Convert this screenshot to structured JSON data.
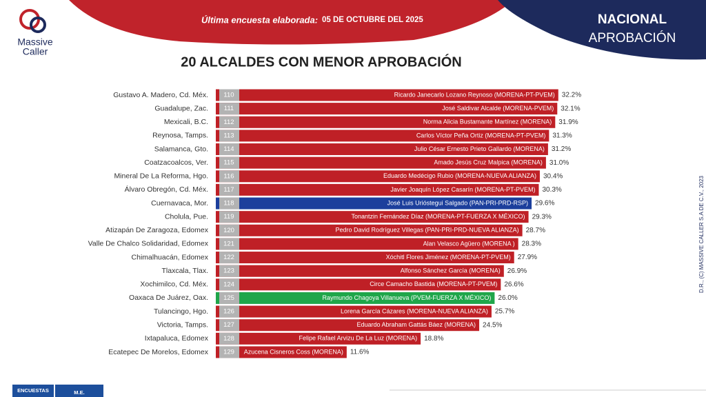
{
  "header": {
    "survey_label": "Última encuesta elaborada:",
    "survey_date": "05 DE OCTUBRE DEL  2025",
    "scope": "NACIONAL",
    "metric": "APROBACIÓN",
    "brand_line1": "Massive",
    "brand_line2": "Caller",
    "side_note": "D.R., (C) MASSIVE CALLER S.A DE C.V., 2023"
  },
  "footer": {
    "tab1": "ENCUESTAS",
    "tab2": "M.E."
  },
  "chart_data": {
    "type": "bar",
    "title": "20 ALCALDES CON MENOR APROBACIÓN",
    "categories": [
      "Gustavo A. Madero, Cd. Méx.",
      "Guadalupe, Zac.",
      "Mexicali, B.C.",
      "Reynosa, Tamps.",
      "Salamanca, Gto.",
      "Coatzacoalcos, Ver.",
      "Mineral De La Reforma, Hgo.",
      "Álvaro Obregón, Cd. Méx.",
      "Cuernavaca, Mor.",
      "Cholula, Pue.",
      "Atizapán De Zaragoza, Edomex",
      "Valle De Chalco Solidaridad, Edomex",
      "Chimalhuacán, Edomex",
      "Tlaxcala, Tlax.",
      "Xochimilco, Cd. Méx.",
      "Oaxaca De Juárez, Oax.",
      "Tulancingo, Hgo.",
      "Victoria, Tamps.",
      "Ixtapaluca, Edomex",
      "Ecatepec De Morelos, Edomex"
    ],
    "ranks": [
      110,
      111,
      112,
      113,
      114,
      115,
      116,
      117,
      118,
      119,
      120,
      121,
      122,
      123,
      124,
      125,
      126,
      127,
      128,
      129
    ],
    "names": [
      "Ricardo Janecarlo Lozano Reynoso (MORENA-PT-PVEM)",
      "José Saldivar Alcalde (MORENA-PVEM)",
      "Norma Alicia Bustamante Martínez (MORENA)",
      "Carlos Víctor Peña Ortiz (MORENA-PT-PVEM)",
      "Julio César Ernesto Prieto Gallardo (MORENA)",
      "Amado Jesús Cruz Malpica (MORENA)",
      "Eduardo Medécigo Rubio (MORENA-NUEVA ALIANZA)",
      "Javier Joaquín López Casarín (MORENA-PT-PVEM)",
      "José Luis Urióstegui Salgado (PAN-PRI-PRD-RSP)",
      "Tonantzin Fernández Díaz (MORENA-PT-FUERZA X MÉXICO)",
      "Pedro David Rodríguez Villegas (PAN-PRI-PRD-NUEVA ALIANZA)",
      "Alan Velasco Agüero (MORENA )",
      "Xóchitl Flores Jiménez  (MORENA-PT-PVEM)",
      "Alfonso Sánchez García  (MORENA)",
      "Circe Camacho Bastida (MORENA-PT-PVEM)",
      "Raymundo Chagoya Villanueva (PVEM-FUERZA X MÉXICO)",
      "Lorena García Cázares (MORENA-NUEVA ALIANZA)",
      "Eduardo Abraham Gattás Báez (MORENA)",
      "Felipe Rafael Arvizu De La Luz (MORENA)",
      "Azucena Cisneros Coss (MORENA)"
    ],
    "values": [
      32.2,
      32.1,
      31.9,
      31.3,
      31.2,
      31.0,
      30.4,
      30.3,
      29.6,
      29.3,
      28.7,
      28.3,
      27.9,
      26.9,
      26.6,
      26.0,
      25.7,
      24.5,
      18.8,
      11.6
    ],
    "value_labels": [
      "32.2%",
      "32.1%",
      "31.9%",
      "31.3%",
      "31.2%",
      "31.0%",
      "30.4%",
      "30.3%",
      "29.6%",
      "29.3%",
      "28.7%",
      "28.3%",
      "27.9%",
      "26.9%",
      "26.6%",
      "26.0%",
      "25.7%",
      "24.5%",
      "18.8%",
      "11.6%"
    ],
    "colors": [
      "#bf2026",
      "#bf2026",
      "#bf2026",
      "#bf2026",
      "#bf2026",
      "#bf2026",
      "#bf2026",
      "#bf2026",
      "#1c3f9c",
      "#bf2026",
      "#bf2026",
      "#bf2026",
      "#bf2026",
      "#bf2026",
      "#bf2026",
      "#1fa64a",
      "#bf2026",
      "#bf2026",
      "#bf2026",
      "#bf2026"
    ]
  }
}
